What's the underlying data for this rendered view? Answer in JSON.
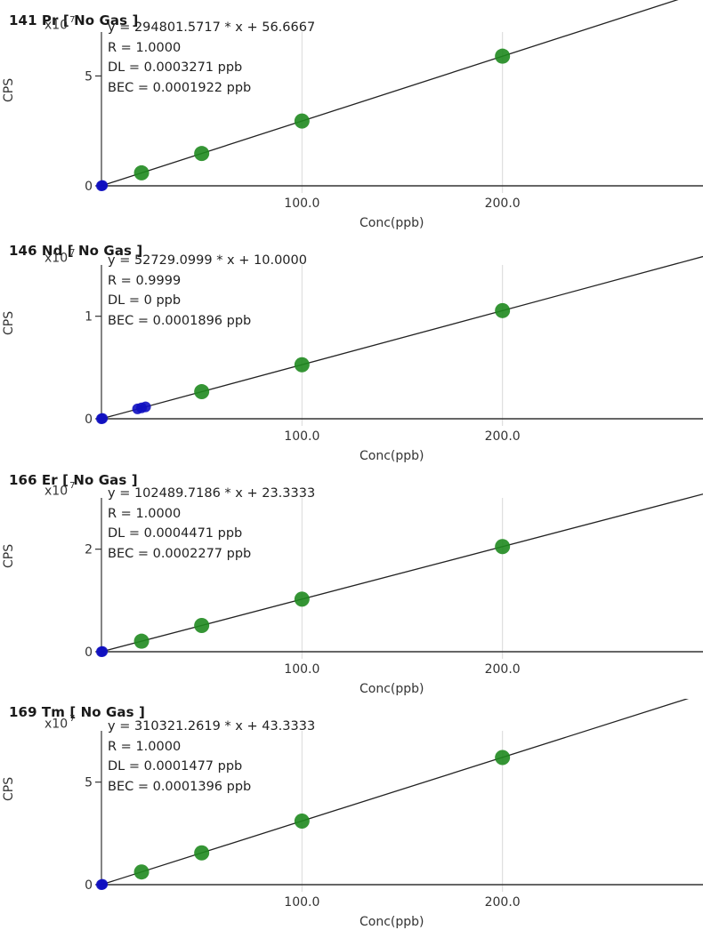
{
  "colors": {
    "standard_point": "#1f8a1f",
    "blank_point": "#1010c0",
    "fit_line": "#222222",
    "grid": "#d9d9d9",
    "axis": "#333333"
  },
  "chart_data": [
    {
      "type": "scatter",
      "title": "141 Pr [ No Gas ]",
      "multiplier_base": "x10",
      "multiplier_exp": "7",
      "xlabel": "Conc(ppb)",
      "ylabel": "CPS",
      "xlim": [
        0,
        300
      ],
      "ylim": [
        0,
        7
      ],
      "x_ticks": [
        100,
        200
      ],
      "x_tick_labels": [
        "100.0",
        "200.0"
      ],
      "y_ticks": [
        0,
        5
      ],
      "y_tick_labels": [
        "0",
        "5"
      ],
      "grid": true,
      "equation": "y = 294801.5717 * x  + 56.6667",
      "r_text": "R =  1.0000",
      "dl_text": "DL = 0.0003271 ppb",
      "bec_text": "BEC = 0.0001922 ppb",
      "slope_e7": 0.02948,
      "intercept_e7": 5.7e-06,
      "series": [
        {
          "role": "blank",
          "x": [
            0,
            0.5
          ],
          "y": [
            0,
            0.015
          ]
        },
        {
          "role": "standard",
          "x": [
            20,
            50,
            100,
            200
          ],
          "y": [
            0.59,
            1.47,
            2.95,
            5.9
          ]
        }
      ]
    },
    {
      "type": "scatter",
      "title": "146 Nd [ No Gas ]",
      "multiplier_base": "x10",
      "multiplier_exp": "7",
      "xlabel": "Conc(ppb)",
      "ylabel": "CPS",
      "xlim": [
        0,
        300
      ],
      "ylim": [
        0,
        1.5
      ],
      "x_ticks": [
        100,
        200
      ],
      "x_tick_labels": [
        "100.0",
        "200.0"
      ],
      "y_ticks": [
        0,
        1
      ],
      "y_tick_labels": [
        "0",
        "1"
      ],
      "grid": true,
      "equation": "y = 52729.0999 * x  + 10.0000",
      "r_text": "R =  0.9999",
      "dl_text": "DL = 0 ppb",
      "bec_text": "BEC = 0.0001896 ppb",
      "slope_e7": 0.005273,
      "intercept_e7": 1e-06,
      "series": [
        {
          "role": "blank",
          "x": [
            0,
            0.5,
            18,
            20,
            22
          ],
          "y": [
            0,
            0.003,
            0.096,
            0.106,
            0.116
          ]
        },
        {
          "role": "standard",
          "x": [
            50,
            100,
            200
          ],
          "y": [
            0.264,
            0.527,
            1.055
          ]
        }
      ]
    },
    {
      "type": "scatter",
      "title": "166 Er [ No Gas ]",
      "multiplier_base": "x10",
      "multiplier_exp": "7",
      "xlabel": "Conc(ppb)",
      "ylabel": "CPS",
      "xlim": [
        0,
        300
      ],
      "ylim": [
        0,
        3
      ],
      "x_ticks": [
        100,
        200
      ],
      "x_tick_labels": [
        "100.0",
        "200.0"
      ],
      "y_ticks": [
        0,
        2
      ],
      "y_tick_labels": [
        "0",
        "2"
      ],
      "grid": true,
      "equation": "y = 102489.7186 * x  + 23.3333",
      "r_text": "R =  1.0000",
      "dl_text": "DL = 0.0004471 ppb",
      "bec_text": "BEC = 0.0002277 ppb",
      "slope_e7": 0.010249,
      "intercept_e7": 2.3e-06,
      "series": [
        {
          "role": "blank",
          "x": [
            0,
            0.5
          ],
          "y": [
            0,
            0.005
          ]
        },
        {
          "role": "standard",
          "x": [
            20,
            50,
            100,
            200
          ],
          "y": [
            0.205,
            0.512,
            1.025,
            2.05
          ]
        }
      ]
    },
    {
      "type": "scatter",
      "title": "169 Tm [ No Gas ]",
      "multiplier_base": "x10",
      "multiplier_exp": "7",
      "xlabel": "Conc(ppb)",
      "ylabel": "CPS",
      "xlim": [
        0,
        300
      ],
      "ylim": [
        0,
        7.5
      ],
      "x_ticks": [
        100,
        200
      ],
      "x_tick_labels": [
        "100.0",
        "200.0"
      ],
      "y_ticks": [
        0,
        5
      ],
      "y_tick_labels": [
        "0",
        "5"
      ],
      "grid": true,
      "equation": "y = 310321.2619 * x  + 43.3333",
      "r_text": "R =  1.0000",
      "dl_text": "DL = 0.0001477 ppb",
      "bec_text": "BEC = 0.0001396 ppb",
      "slope_e7": 0.031032,
      "intercept_e7": 4.3e-06,
      "series": [
        {
          "role": "blank",
          "x": [
            0,
            0.5
          ],
          "y": [
            0,
            0.016
          ]
        },
        {
          "role": "standard",
          "x": [
            20,
            50,
            100,
            200
          ],
          "y": [
            0.62,
            1.55,
            3.1,
            6.2
          ]
        }
      ]
    }
  ]
}
